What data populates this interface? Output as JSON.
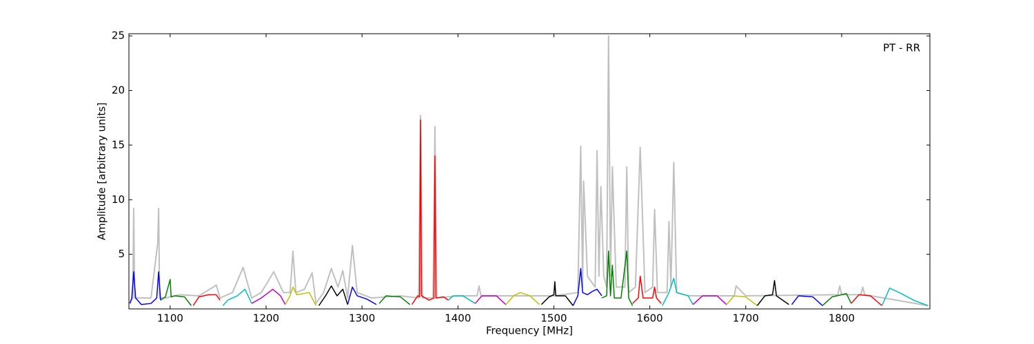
{
  "chart_data": {
    "type": "line",
    "annotation": "PT - RR",
    "xlabel": "Frequency [MHz]",
    "ylabel": "Amplitude [arbitrary units]",
    "xlim": [
      1057,
      1892
    ],
    "ylim": [
      0,
      25.2
    ],
    "xticks": [
      1100,
      1200,
      1300,
      1400,
      1500,
      1600,
      1700,
      1800
    ],
    "yticks": [
      5,
      10,
      15,
      20,
      25
    ],
    "series": [
      {
        "color": "#c0c0c0",
        "x": [
          1058,
          1061,
          1062,
          1063,
          1070,
          1080,
          1087,
          1088,
          1089,
          1095,
          1110,
          1130,
          1145,
          1148,
          1152,
          1165,
          1176,
          1185,
          1195,
          1208,
          1218,
          1225,
          1228,
          1231,
          1240,
          1248,
          1252,
          1260,
          1268,
          1275,
          1280,
          1285,
          1290,
          1295,
          1310,
          1340,
          1359,
          1361,
          1363,
          1374,
          1376,
          1378,
          1400,
          1420,
          1422,
          1424,
          1500,
          1525,
          1528,
          1530,
          1531,
          1535,
          1543,
          1545,
          1547,
          1549,
          1552,
          1555,
          1557,
          1559,
          1561,
          1565,
          1574,
          1576,
          1578,
          1585,
          1590,
          1595,
          1603,
          1605,
          1608,
          1618,
          1620,
          1622,
          1625,
          1628,
          1640,
          1688,
          1690,
          1700,
          1796,
          1798,
          1800,
          1820,
          1822,
          1824,
          1890
        ],
        "values": [
          0.5,
          1,
          9.2,
          1,
          1,
          1,
          6,
          9.2,
          1,
          1,
          1.3,
          1.2,
          2,
          2.2,
          1,
          1.5,
          3.8,
          1,
          1.5,
          3.4,
          1.5,
          1.5,
          5.3,
          1.5,
          1.8,
          3.3,
          0.5,
          1.5,
          3.7,
          2,
          3.5,
          1,
          5.8,
          1.5,
          1,
          1.2,
          1,
          17.7,
          1,
          1,
          16.7,
          1,
          1.2,
          1.2,
          2.1,
          1.2,
          1.2,
          1.5,
          14.9,
          2,
          11.7,
          3,
          2,
          14.5,
          3,
          11.2,
          3,
          2,
          25,
          3,
          13,
          2,
          2,
          13,
          1.5,
          2,
          14.8,
          1.5,
          2,
          9.1,
          1.5,
          1.5,
          8,
          2,
          13.4,
          1.5,
          1.2,
          1.2,
          2.1,
          1.2,
          1.3,
          2.1,
          1.3,
          1.3,
          2,
          1.3,
          0.3
        ]
      },
      {
        "color": "#0000ff",
        "x": [
          1058,
          1060,
          1062,
          1064,
          1070,
          1080,
          1086,
          1088,
          1090
        ],
        "values": [
          0.5,
          1,
          3.4,
          1,
          0.4,
          0.5,
          1,
          3.4,
          0.8
        ]
      },
      {
        "color": "#008000",
        "x": [
          1090,
          1095,
          1100,
          1101,
          1105,
          1115,
          1122
        ],
        "values": [
          0.8,
          1.1,
          2.7,
          1.1,
          1.2,
          1.1,
          0.3
        ]
      },
      {
        "color": "#ff0000",
        "x": [
          1124,
          1130,
          1140,
          1148,
          1152
        ],
        "values": [
          0.3,
          1.1,
          1.3,
          1.3,
          0.8
        ]
      },
      {
        "color": "#00bfbf",
        "x": [
          1155,
          1160,
          1170,
          1178,
          1185
        ],
        "values": [
          0.3,
          0.8,
          1.2,
          1.8,
          0.5
        ]
      },
      {
        "color": "#bf00bf",
        "x": [
          1185,
          1195,
          1207,
          1215,
          1220
        ],
        "values": [
          0.5,
          1,
          1.8,
          1.2,
          0.4
        ]
      },
      {
        "color": "#bfbf00",
        "x": [
          1220,
          1225,
          1228,
          1232,
          1245,
          1252
        ],
        "values": [
          0.4,
          1.2,
          2,
          1.3,
          1.5,
          0.3
        ]
      },
      {
        "color": "#000000",
        "x": [
          1255,
          1262,
          1268,
          1274,
          1280,
          1285
        ],
        "values": [
          0.3,
          1.2,
          2.1,
          1.2,
          1.8,
          0.4
        ]
      },
      {
        "color": "#0000ff",
        "x": [
          1285,
          1290,
          1295,
          1305,
          1315
        ],
        "values": [
          0.4,
          2,
          1.2,
          0.9,
          0.4
        ]
      },
      {
        "color": "#008000",
        "x": [
          1318,
          1325,
          1340,
          1350
        ],
        "values": [
          0.5,
          1.2,
          1.1,
          0.4
        ]
      },
      {
        "color": "#ff0000",
        "x": [
          1352,
          1358,
          1360,
          1361,
          1362,
          1370,
          1375,
          1376,
          1377,
          1385,
          1390
        ],
        "values": [
          0.4,
          1.2,
          1.1,
          17.3,
          1.2,
          0.8,
          1,
          14,
          1,
          1.1,
          0.8
        ]
      },
      {
        "color": "#00bfbf",
        "x": [
          1390,
          1395,
          1405,
          1418
        ],
        "values": [
          0.8,
          1.2,
          1.2,
          0.5
        ]
      },
      {
        "color": "#bf00bf",
        "x": [
          1418,
          1425,
          1440,
          1450
        ],
        "values": [
          0.5,
          1.2,
          1.2,
          0.4
        ]
      },
      {
        "color": "#bfbf00",
        "x": [
          1450,
          1458,
          1465,
          1475,
          1485
        ],
        "values": [
          0.4,
          1.2,
          1.5,
          1.2,
          0.4
        ]
      },
      {
        "color": "#000000",
        "x": [
          1487,
          1495,
          1500,
          1501,
          1502,
          1512,
          1520
        ],
        "values": [
          0.4,
          1.1,
          1.3,
          2.5,
          1.2,
          1.2,
          0.3
        ]
      },
      {
        "color": "#0000ff",
        "x": [
          1520,
          1525,
          1528,
          1530,
          1535,
          1540,
          1545,
          1550
        ],
        "values": [
          0.3,
          1.2,
          3.7,
          1.5,
          1.3,
          1.6,
          1.8,
          1.2
        ]
      },
      {
        "color": "#008000",
        "x": [
          1550,
          1555,
          1557,
          1559,
          1561,
          1563,
          1570,
          1576,
          1578,
          1582
        ],
        "values": [
          1,
          1.2,
          5.3,
          1.2,
          4,
          1,
          1,
          5.3,
          1,
          0.3
        ]
      },
      {
        "color": "#ff0000",
        "x": [
          1582,
          1588,
          1590,
          1593,
          1603,
          1605,
          1607,
          1612
        ],
        "values": [
          0.5,
          1,
          3,
          1,
          1,
          2,
          1,
          0.5
        ]
      },
      {
        "color": "#00bfbf",
        "x": [
          1613,
          1620,
          1625,
          1628,
          1640,
          1645
        ],
        "values": [
          0.3,
          1.5,
          2.8,
          1.5,
          1.2,
          0.4
        ]
      },
      {
        "color": "#bf00bf",
        "x": [
          1645,
          1655,
          1670,
          1680
        ],
        "values": [
          0.4,
          1.2,
          1.2,
          0.4
        ]
      },
      {
        "color": "#bfbf00",
        "x": [
          1680,
          1688,
          1700,
          1712
        ],
        "values": [
          0.4,
          1.2,
          1.1,
          0.3
        ]
      },
      {
        "color": "#000000",
        "x": [
          1712,
          1720,
          1728,
          1730,
          1732,
          1745
        ],
        "values": [
          0.3,
          1.2,
          1.3,
          2.6,
          1.2,
          0.4
        ]
      },
      {
        "color": "#0000ff",
        "x": [
          1748,
          1755,
          1770,
          1780
        ],
        "values": [
          0.4,
          1.2,
          1.1,
          0.3
        ]
      },
      {
        "color": "#008000",
        "x": [
          1780,
          1790,
          1805,
          1810
        ],
        "values": [
          0.3,
          1.1,
          1.4,
          0.5
        ]
      },
      {
        "color": "#ff0000",
        "x": [
          1810,
          1818,
          1830,
          1842
        ],
        "values": [
          0.5,
          1.3,
          1.2,
          0.3
        ]
      },
      {
        "color": "#00bfbf",
        "x": [
          1842,
          1850,
          1860,
          1875,
          1890
        ],
        "values": [
          0.3,
          1.9,
          1.5,
          0.8,
          0.3
        ]
      }
    ]
  }
}
